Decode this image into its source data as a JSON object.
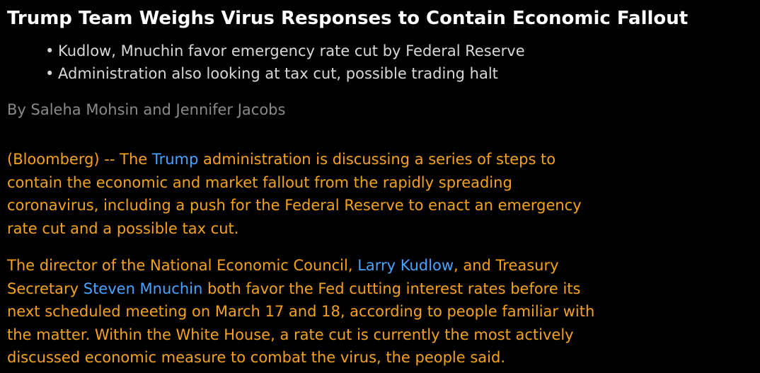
{
  "article": {
    "headline": "Trump Team Weighs Virus Responses to Contain Economic Fallout",
    "bullets": [
      "Kudlow, Mnuchin favor emergency rate cut by Federal Reserve",
      "Administration also looking at tax cut, possible trading halt"
    ],
    "byline": "By Saleha Mohsin and Jennifer Jacobs",
    "paragraph1": {
      "l1_pre": "(Bloomberg) -- The ",
      "l1_link": "Trump",
      "l1_post": " administration is discussing a series of steps to",
      "l2": "contain the economic and market fallout from the rapidly spreading",
      "l3": "coronavirus, including a push for the Federal Reserve to enact an emergency",
      "l4": "rate cut and a possible tax cut."
    },
    "paragraph2": {
      "l1_pre": "The director of the National Economic Council, ",
      "l1_link": "Larry Kudlow",
      "l1_post": ", and Treasury",
      "l2_pre": "Secretary ",
      "l2_link": "Steven Mnuchin",
      "l2_post": " both favor the Fed cutting interest rates before its",
      "l3": "next scheduled meeting on March 17 and 18, according to people familiar with",
      "l4": "the matter. Within the White House, a rate cut is currently the most actively",
      "l5": "discussed economic measure to combat the virus, the people said."
    }
  },
  "colors": {
    "background": "#000000",
    "headline": "#ffffff",
    "bullets": "#d8d8d8",
    "byline": "#8a8a8a",
    "body_text": "#f5a21e",
    "link": "#4aa3ff"
  }
}
